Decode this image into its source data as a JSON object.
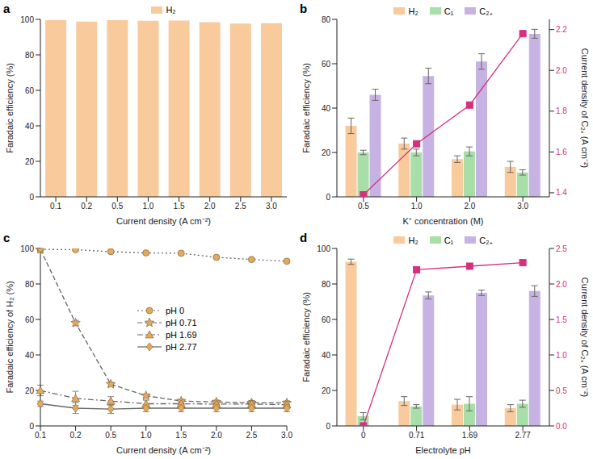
{
  "chart_data": [
    {
      "type": "bar",
      "title": "a",
      "x_label": "Current density (A cm⁻²)",
      "y_label": "Faradaic efficiency (%)",
      "categories": [
        "0.1",
        "0.2",
        "0.5",
        "1.0",
        "1.5",
        "2.0",
        "2.5",
        "3.0"
      ],
      "series": [
        {
          "name": "H₂",
          "color": "#f9cb9c",
          "values": [
            99.5,
            98.7,
            99.6,
            99.2,
            99.3,
            98.4,
            97.6,
            97.8
          ]
        }
      ],
      "ylim": [
        0,
        100
      ],
      "yticks": [
        0,
        20,
        40,
        60,
        80,
        100
      ],
      "legend": "top",
      "grid": false
    },
    {
      "type": "bar",
      "title": "b",
      "x_label": "K⁺ concentration (M)",
      "y_label": "Faradaic efficiency (%)",
      "y2_label": "Current density of C₂₊ (A cm⁻²)",
      "categories": [
        "0.5",
        "1.0",
        "2.0",
        "3.0"
      ],
      "series": [
        {
          "name": "H₂",
          "color": "#f9cb9c",
          "values": [
            32,
            24,
            17,
            13.5
          ],
          "errors": [
            3.5,
            2.5,
            1.5,
            2.5
          ]
        },
        {
          "name": "C₁",
          "color": "#a8dfa8",
          "values": [
            20,
            20,
            20.5,
            11
          ],
          "errors": [
            1,
            1.5,
            2,
            1.2
          ]
        },
        {
          "name": "C₂₊",
          "color": "#c7b3e3",
          "values": [
            46,
            54.5,
            61,
            73.5
          ],
          "errors": [
            2.5,
            3.5,
            3.5,
            2
          ]
        },
        {
          "type": "line",
          "axis": "y2",
          "color": "#d62f7f",
          "marker": "square",
          "line_style": "solid",
          "values": [
            1.39,
            1.64,
            1.83,
            2.18
          ]
        }
      ],
      "ylim": [
        0,
        80
      ],
      "yticks": [
        0,
        20,
        40,
        60,
        80
      ],
      "y2lim": [
        1.38,
        2.25
      ],
      "y2ticks": [
        1.4,
        1.6,
        1.8,
        {
          "value": 2.0,
          "label": "2.0"
        },
        2.2
      ],
      "legend": "top",
      "grid": false
    },
    {
      "type": "line",
      "title": "c",
      "x_label": "Current density (A cm⁻²)",
      "y_label": "Faradaic efficiency of H₂ (%)",
      "categories": [
        "0.1",
        "0.2",
        "0.5",
        "1.0",
        "1.5",
        "2.0",
        "2.5",
        "3.0"
      ],
      "series": [
        {
          "name": "pH 0",
          "color": "#e3a95c",
          "marker": "circle",
          "line_style": "dotted",
          "values": [
            99.5,
            99.3,
            98.2,
            97.5,
            97.3,
            95,
            93.8,
            92.8
          ],
          "errors": [
            0.5,
            0.5,
            0.5,
            0.5,
            0.5,
            0.5,
            0.5,
            0.5
          ]
        },
        {
          "name": "pH 0.71",
          "color": "#e3a95c",
          "marker": "star",
          "line_style": "dashed",
          "values": [
            99.5,
            58,
            23.5,
            17,
            14,
            13.5,
            13,
            13
          ],
          "errors": [
            0.5,
            1.5,
            1,
            1,
            1,
            1,
            1,
            1
          ]
        },
        {
          "name": "pH 1.69",
          "color": "#e3a95c",
          "marker": "triangle",
          "line_style": "dashdot",
          "values": [
            20,
            15.5,
            14,
            12.5,
            12.5,
            12.3,
            12.3,
            12
          ],
          "errors": [
            3,
            4,
            2.5,
            2,
            2,
            2,
            2,
            2
          ]
        },
        {
          "name": "pH 2.77",
          "color": "#e3a95c",
          "marker": "diamond",
          "line_style": "solid",
          "values": [
            12.5,
            10,
            9.5,
            10,
            10,
            10,
            10,
            10
          ],
          "errors": [
            1.5,
            3,
            2.5,
            2,
            2,
            2,
            2,
            2
          ]
        }
      ],
      "ylim": [
        0,
        100
      ],
      "yticks": [
        0,
        20,
        40,
        60,
        80,
        100
      ],
      "legend": "right",
      "grid": false
    },
    {
      "type": "bar",
      "title": "d",
      "x_label": "Electrolyte pH",
      "y_label": "Faradaic efficiency (%)",
      "y2_label": "Current density of C₂₊ (A cm⁻²)",
      "categories": [
        "0",
        "0.71",
        "1.69",
        "2.77"
      ],
      "series": [
        {
          "name": "H₂",
          "color": "#f9cb9c",
          "values": [
            92.5,
            14,
            12,
            10
          ],
          "errors": [
            1.5,
            2.5,
            3,
            2
          ]
        },
        {
          "name": "C₁",
          "color": "#a8dfa8",
          "values": [
            5.5,
            11,
            12.5,
            12.5
          ],
          "errors": [
            2,
            1,
            4,
            2
          ]
        },
        {
          "name": "C₂₊",
          "color": "#c7b3e3",
          "values": [
            0,
            73.5,
            75,
            76
          ],
          "errors": [
            0,
            2,
            1.5,
            3
          ]
        },
        {
          "type": "line",
          "axis": "y2",
          "color": "#d62f7f",
          "marker": "square",
          "line_style": "solid",
          "values": [
            0,
            2.2,
            2.25,
            2.3
          ]
        }
      ],
      "ylim": [
        0,
        100
      ],
      "yticks": [
        0,
        20,
        40,
        60,
        80,
        100
      ],
      "y2lim": [
        0,
        2.5
      ],
      "y2ticks": [
        {
          "value": 0,
          "label": "0.0"
        },
        0.5,
        {
          "value": 1,
          "label": "1.0"
        },
        1.5,
        {
          "value": 2,
          "label": "2.0"
        },
        2.5
      ],
      "legend": "top",
      "grid": false
    }
  ]
}
